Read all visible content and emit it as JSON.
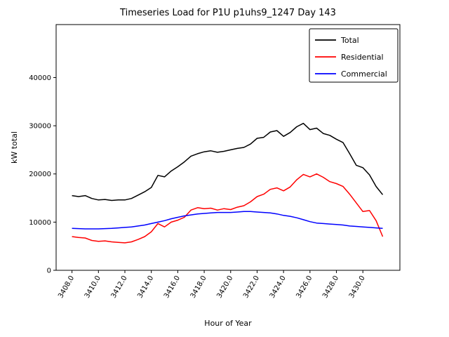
{
  "chart_data": {
    "type": "line",
    "title": "Timeseries Load for P1U p1uhs9_1247  Day 143",
    "xlabel": "Hour of Year",
    "ylabel": "kW total",
    "xlim": [
      3406.8,
      3432.8
    ],
    "ylim": [
      0,
      51000
    ],
    "grid": false,
    "legend_position": "upper right",
    "yticks": [
      0,
      10000,
      20000,
      30000,
      40000
    ],
    "ytick_labels": [
      "0",
      "10000",
      "20000",
      "30000",
      "40000"
    ],
    "xticks": [
      3408,
      3410,
      3412,
      3414,
      3416,
      3418,
      3420,
      3422,
      3424,
      3426,
      3428,
      3430
    ],
    "xtick_labels": [
      "3408.0",
      "3410.0",
      "3412.0",
      "3414.0",
      "3416.0",
      "3418.0",
      "3420.0",
      "3422.0",
      "3424.0",
      "3426.0",
      "3428.0",
      "3430.0"
    ],
    "x": [
      3408.0,
      3408.5,
      3409.0,
      3409.5,
      3410.0,
      3410.5,
      3411.0,
      3411.5,
      3412.0,
      3412.5,
      3413.0,
      3413.5,
      3414.0,
      3414.5,
      3415.0,
      3415.5,
      3416.0,
      3416.5,
      3417.0,
      3417.5,
      3418.0,
      3418.5,
      3419.0,
      3419.5,
      3420.0,
      3420.5,
      3421.0,
      3421.5,
      3422.0,
      3422.5,
      3423.0,
      3423.5,
      3424.0,
      3424.5,
      3425.0,
      3425.5,
      3426.0,
      3426.5,
      3427.0,
      3427.5,
      3428.0,
      3428.5,
      3429.0,
      3429.5,
      3430.0,
      3430.5,
      3431.0,
      3431.5
    ],
    "series": [
      {
        "name": "Total",
        "color": "#000000",
        "values": [
          15500,
          15300,
          15500,
          14900,
          14600,
          14700,
          14500,
          14600,
          14600,
          14900,
          15600,
          16300,
          17200,
          19700,
          19400,
          20600,
          21500,
          22500,
          23700,
          24200,
          24600,
          24800,
          24500,
          24700,
          25000,
          25300,
          25500,
          26200,
          27400,
          27600,
          28700,
          29000,
          27800,
          28600,
          29800,
          30500,
          29200,
          29500,
          28400,
          28000,
          27200,
          26500,
          24200,
          21800,
          21300,
          19800,
          17400,
          15700
        ]
      },
      {
        "name": "Residential",
        "color": "#ff0000",
        "values": [
          7000,
          6800,
          6700,
          6200,
          6000,
          6100,
          5900,
          5800,
          5700,
          5900,
          6400,
          7000,
          8000,
          9700,
          9000,
          10000,
          10400,
          11000,
          12500,
          13000,
          12800,
          12900,
          12500,
          12800,
          12600,
          13100,
          13400,
          14200,
          15300,
          15800,
          16800,
          17100,
          16500,
          17300,
          18800,
          19900,
          19400,
          20000,
          19300,
          18400,
          18000,
          17400,
          15800,
          14000,
          12200,
          12400,
          10300,
          7000
        ]
      },
      {
        "name": "Commercial",
        "color": "#0000ff",
        "values": [
          8700,
          8650,
          8600,
          8600,
          8600,
          8650,
          8700,
          8800,
          8900,
          9000,
          9200,
          9400,
          9700,
          10000,
          10300,
          10700,
          11000,
          11300,
          11500,
          11700,
          11800,
          11900,
          12000,
          12000,
          12000,
          12100,
          12200,
          12200,
          12100,
          12000,
          11900,
          11700,
          11400,
          11200,
          10900,
          10500,
          10100,
          9800,
          9700,
          9600,
          9500,
          9400,
          9200,
          9100,
          9000,
          8900,
          8800,
          8700
        ]
      }
    ]
  }
}
